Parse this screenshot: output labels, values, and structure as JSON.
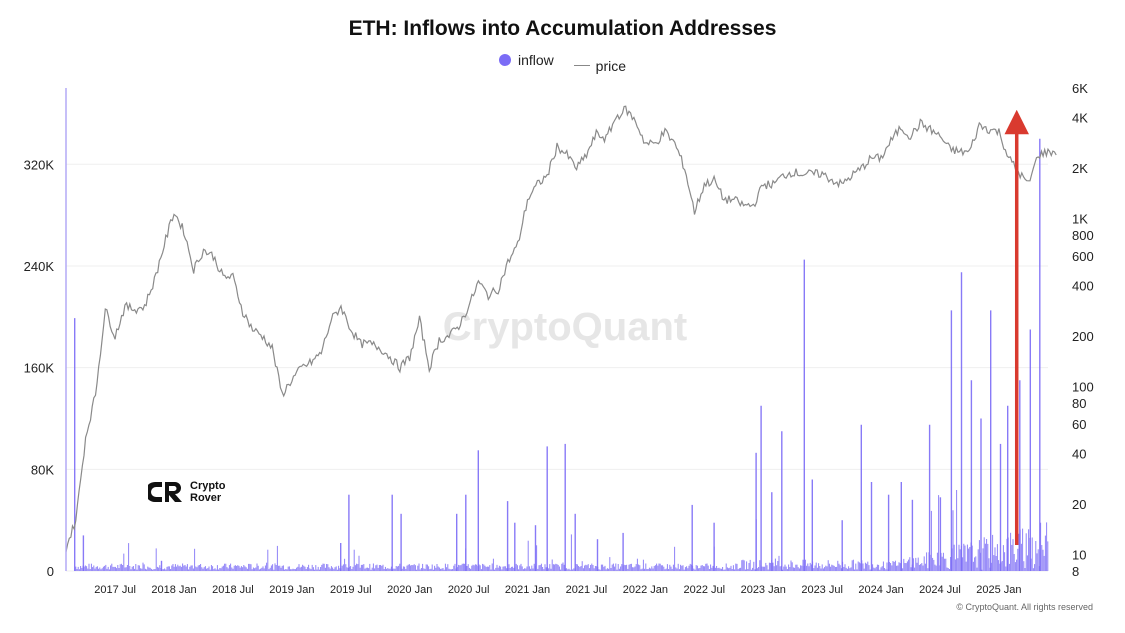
{
  "title": "ETH: Inflows into Accumulation Addresses",
  "legend": {
    "inflow": "inflow",
    "price": "price"
  },
  "watermark": "CryptoQuant",
  "footer": "© CryptoQuant. All rights reserved",
  "logo": {
    "line1": "Crypto",
    "line2": "Rover"
  },
  "colors": {
    "inflow": "#7b6cf6",
    "price": "#8a8a8a",
    "arrow": "#d93a2f",
    "watermark": "#e4e4e4"
  },
  "chart_data": {
    "type": "bar",
    "title": "ETH: Inflows into Accumulation Addresses",
    "x_tick_labels": [
      "2017 Jul",
      "2018 Jan",
      "2018 Jul",
      "2019 Jan",
      "2019 Jul",
      "2020 Jan",
      "2020 Jul",
      "2021 Jan",
      "2021 Jul",
      "2022 Jan",
      "2022 Jul",
      "2023 Jan",
      "2023 Jul",
      "2024 Jan",
      "2024 Jul",
      "2025 Jan"
    ],
    "x_range": [
      "2017-02",
      "2025-06"
    ],
    "left_axis": {
      "ticks": [
        0,
        80000,
        160000,
        240000,
        320000
      ],
      "tick_labels": [
        "0",
        "80K",
        "160K",
        "240K",
        "320K"
      ],
      "ylim": [
        0,
        380000
      ]
    },
    "right_axis": {
      "scale": "log",
      "ticks": [
        8,
        10,
        20,
        40,
        60,
        80,
        100,
        200,
        400,
        600,
        800,
        1000,
        2000,
        4000,
        6000
      ],
      "tick_labels": [
        "8",
        "10",
        "20",
        "40",
        "60",
        "80",
        "100",
        "200",
        "400",
        "600",
        "800",
        "1K",
        "2K",
        "4K",
        "6K"
      ],
      "ylim": [
        8,
        6000
      ]
    },
    "series": [
      {
        "name": "price",
        "type": "line",
        "axis": "right",
        "x": [
          "2017-02",
          "2017-03",
          "2017-04",
          "2017-05",
          "2017-06",
          "2017-07",
          "2017-08",
          "2017-09",
          "2017-10",
          "2017-11",
          "2017-12",
          "2018-01",
          "2018-02",
          "2018-03",
          "2018-04",
          "2018-05",
          "2018-06",
          "2018-07",
          "2018-08",
          "2018-09",
          "2018-10",
          "2018-11",
          "2018-12",
          "2019-01",
          "2019-02",
          "2019-03",
          "2019-04",
          "2019-05",
          "2019-06",
          "2019-07",
          "2019-08",
          "2019-09",
          "2019-10",
          "2019-11",
          "2019-12",
          "2020-01",
          "2020-02",
          "2020-03",
          "2020-04",
          "2020-05",
          "2020-06",
          "2020-07",
          "2020-08",
          "2020-09",
          "2020-10",
          "2020-11",
          "2020-12",
          "2021-01",
          "2021-02",
          "2021-03",
          "2021-04",
          "2021-05",
          "2021-06",
          "2021-07",
          "2021-08",
          "2021-09",
          "2021-10",
          "2021-11",
          "2021-12",
          "2022-01",
          "2022-02",
          "2022-03",
          "2022-04",
          "2022-05",
          "2022-06",
          "2022-07",
          "2022-08",
          "2022-09",
          "2022-10",
          "2022-11",
          "2022-12",
          "2023-01",
          "2023-02",
          "2023-03",
          "2023-04",
          "2023-05",
          "2023-06",
          "2023-07",
          "2023-08",
          "2023-09",
          "2023-10",
          "2023-11",
          "2023-12",
          "2024-01",
          "2024-02",
          "2024-03",
          "2024-04",
          "2024-05",
          "2024-06",
          "2024-07",
          "2024-08",
          "2024-09",
          "2024-10",
          "2024-11",
          "2024-12",
          "2025-01",
          "2025-02",
          "2025-03",
          "2025-04",
          "2025-05",
          "2025-06"
        ],
        "values": [
          11,
          16,
          50,
          90,
          290,
          200,
          300,
          290,
          300,
          430,
          700,
          1100,
          850,
          500,
          650,
          600,
          450,
          450,
          280,
          220,
          200,
          170,
          90,
          110,
          130,
          140,
          160,
          250,
          300,
          220,
          180,
          180,
          170,
          150,
          130,
          150,
          250,
          130,
          190,
          200,
          230,
          300,
          420,
          350,
          380,
          550,
          700,
          1300,
          1600,
          1800,
          2700,
          2400,
          2000,
          2400,
          3200,
          3000,
          4000,
          4500,
          3800,
          2800,
          2800,
          3300,
          2800,
          2000,
          1100,
          1600,
          1700,
          1300,
          1300,
          1200,
          1200,
          1600,
          1600,
          1800,
          1900,
          1850,
          1850,
          1850,
          1700,
          1600,
          1800,
          2000,
          2300,
          2300,
          2900,
          3500,
          3100,
          3700,
          3400,
          3100,
          2600,
          2500,
          2500,
          3600,
          3400,
          3300,
          2300,
          1900,
          1600,
          2400,
          2500
        ]
      },
      {
        "name": "inflow",
        "type": "bar",
        "axis": "left",
        "baseline": {
          "range": [
            "2017-03",
            "2025-06"
          ],
          "typical": [
            1000,
            6000
          ]
        },
        "spikes": [
          {
            "x": "2017-03",
            "value": 199000
          },
          {
            "x": "2017-04",
            "value": 28000
          },
          {
            "x": "2017-12",
            "value": 8000
          },
          {
            "x": "2019-06",
            "value": 22000
          },
          {
            "x": "2019-07",
            "value": 60000
          },
          {
            "x": "2019-11",
            "value": 60000
          },
          {
            "x": "2019-12",
            "value": 45000
          },
          {
            "x": "2020-06",
            "value": 45000
          },
          {
            "x": "2020-07",
            "value": 60000
          },
          {
            "x": "2020-08",
            "value": 95000
          },
          {
            "x": "2020-11",
            "value": 55000
          },
          {
            "x": "2020-12",
            "value": 38000
          },
          {
            "x": "2021-02",
            "value": 36000
          },
          {
            "x": "2021-03",
            "value": 98000
          },
          {
            "x": "2021-05",
            "value": 100000
          },
          {
            "x": "2021-06",
            "value": 45000
          },
          {
            "x": "2021-08",
            "value": 25000
          },
          {
            "x": "2021-11",
            "value": 30000
          },
          {
            "x": "2022-06",
            "value": 52000
          },
          {
            "x": "2022-08",
            "value": 38000
          },
          {
            "x": "2022-12",
            "value": 93000
          },
          {
            "x": "2023-01",
            "value": 130000
          },
          {
            "x": "2023-02",
            "value": 62000
          },
          {
            "x": "2023-03",
            "value": 110000
          },
          {
            "x": "2023-05",
            "value": 245000
          },
          {
            "x": "2023-06",
            "value": 72000
          },
          {
            "x": "2023-09",
            "value": 40000
          },
          {
            "x": "2023-11",
            "value": 115000
          },
          {
            "x": "2023-12",
            "value": 70000
          },
          {
            "x": "2024-02",
            "value": 60000
          },
          {
            "x": "2024-03",
            "value": 70000
          },
          {
            "x": "2024-04",
            "value": 56000
          },
          {
            "x": "2024-06",
            "value": 115000
          },
          {
            "x": "2024-07",
            "value": 58000
          },
          {
            "x": "2024-08",
            "value": 205000
          },
          {
            "x": "2024-09",
            "value": 235000
          },
          {
            "x": "2024-10",
            "value": 150000
          },
          {
            "x": "2024-11",
            "value": 120000
          },
          {
            "x": "2024-12",
            "value": 205000
          },
          {
            "x": "2025-01",
            "value": 100000
          },
          {
            "x": "2025-02",
            "value": 130000
          },
          {
            "x": "2025-03",
            "value": 150000
          },
          {
            "x": "2025-04",
            "value": 190000
          },
          {
            "x": "2025-05",
            "value": 340000
          }
        ]
      }
    ],
    "annotations": [
      {
        "type": "arrow",
        "color": "red",
        "x": "2025-02",
        "direction": "up"
      }
    ],
    "grid": {
      "horizontal": true,
      "vertical": false
    }
  }
}
